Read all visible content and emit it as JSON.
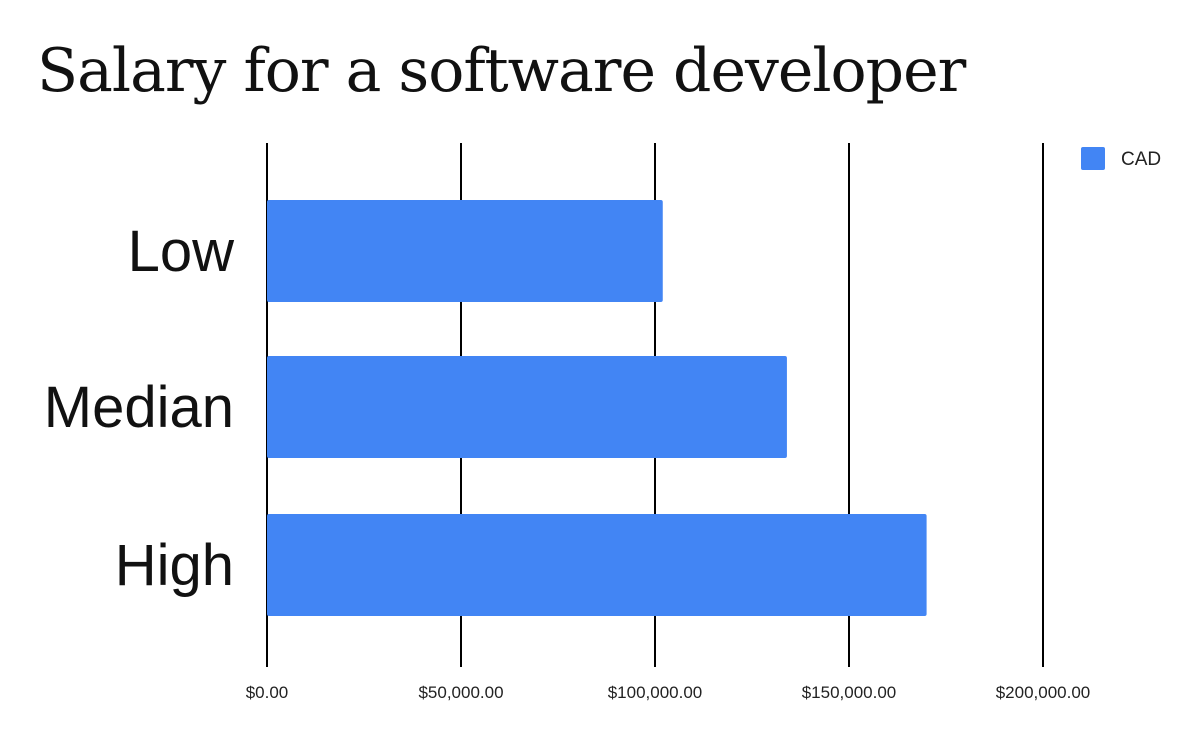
{
  "chart_data": {
    "type": "bar",
    "orientation": "horizontal",
    "title": "Salary for a software developer",
    "categories": [
      "Low",
      "Median",
      "High"
    ],
    "series": [
      {
        "name": "CAD",
        "color": "#4285f4",
        "values": [
          102000,
          134000,
          170000
        ]
      }
    ],
    "xlim": [
      0,
      200000
    ],
    "x_ticks": [
      0,
      50000,
      100000,
      150000,
      200000
    ],
    "x_tick_labels": [
      "$0.00",
      "$50,000.00",
      "$100,000.00",
      "$150,000.00",
      "$200,000.00"
    ],
    "grid": true,
    "legend_position": "top-right",
    "xlabel": "",
    "ylabel": ""
  }
}
